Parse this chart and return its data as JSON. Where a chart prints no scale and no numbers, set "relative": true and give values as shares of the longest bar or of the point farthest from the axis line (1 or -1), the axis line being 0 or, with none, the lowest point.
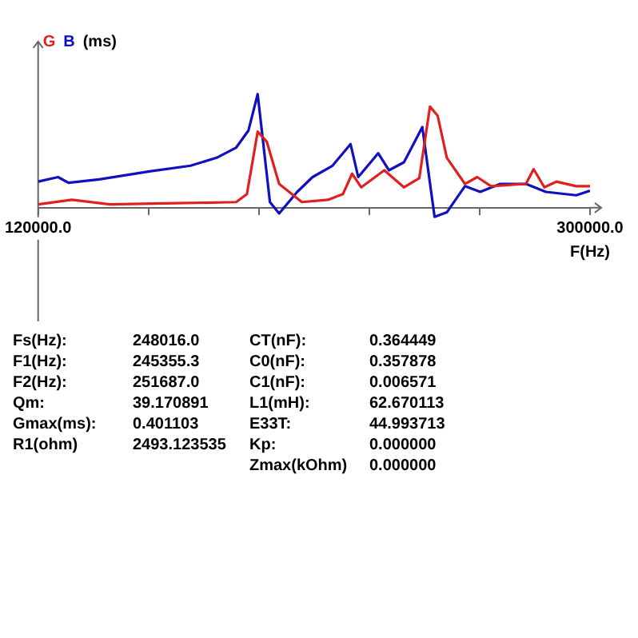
{
  "chart_data": {
    "type": "line",
    "relative": true,
    "xlabel": "F(Hz)",
    "ylabel": "(ms)",
    "xlim": [
      120000,
      300000
    ],
    "xticks": [
      {
        "value": 120000,
        "label": "120000.0"
      },
      {
        "value": 156000,
        "label": null
      },
      {
        "value": 192000,
        "label": null
      },
      {
        "value": 228000,
        "label": null
      },
      {
        "value": 264000,
        "label": null
      },
      {
        "value": 300000,
        "label": "300000.0"
      }
    ],
    "series": [
      {
        "name": "G",
        "color": "#e02020",
        "x": [
          120000,
          131000,
          143400,
          164700,
          184600,
          188100,
          191600,
          194600,
          198600,
          206000,
          214500,
          219400,
          222400,
          225400,
          232900,
          239300,
          244300,
          247800,
          250300,
          253300,
          259200,
          263200,
          267700,
          279100,
          281600,
          285100,
          289000,
          295500,
          300000
        ],
        "values": [
          0.03,
          0.07,
          0.03,
          0.04,
          0.05,
          0.12,
          0.67,
          0.58,
          0.21,
          0.05,
          0.07,
          0.12,
          0.3,
          0.18,
          0.33,
          0.18,
          0.26,
          0.89,
          0.81,
          0.44,
          0.21,
          0.27,
          0.19,
          0.21,
          0.34,
          0.18,
          0.23,
          0.19,
          0.19
        ]
      },
      {
        "name": "B",
        "color": "#1010c0",
        "x": [
          120000,
          126500,
          129900,
          139900,
          156300,
          169700,
          178200,
          184600,
          188600,
          191600,
          195600,
          198600,
          204500,
          209500,
          216000,
          221900,
          224400,
          230900,
          234400,
          239300,
          245300,
          249300,
          253300,
          259200,
          264200,
          270700,
          279100,
          285600,
          295500,
          300000
        ],
        "values": [
          0.23,
          0.27,
          0.22,
          0.25,
          0.32,
          0.37,
          0.44,
          0.53,
          0.68,
          1,
          0.05,
          -0.05,
          0.14,
          0.27,
          0.37,
          0.56,
          0.27,
          0.48,
          0.33,
          0.4,
          0.71,
          -0.08,
          -0.04,
          0.19,
          0.14,
          0.21,
          0.21,
          0.14,
          0.11,
          0.15
        ]
      }
    ],
    "legend": false,
    "marker": "none",
    "line_style": "solid",
    "grid": false,
    "annotations": [
      "Fs(Hz):",
      "248016.0",
      "F1(Hz):",
      "245355.3",
      "F2(Hz):",
      "251687.0",
      "Qm:",
      "39.170891",
      "Gmax(ms):",
      "0.401103",
      "R1(ohm)",
      "2493.123535",
      "CT(nF):",
      "0.364449",
      "C0(nF):",
      "0.357878",
      "C1(nF):",
      "0.006571",
      "L1(mH):",
      "62.670113",
      "E33T:",
      "44.993713",
      "Kp:",
      "0.000000",
      "Zmax(kOhm)",
      "0.000000"
    ]
  }
}
